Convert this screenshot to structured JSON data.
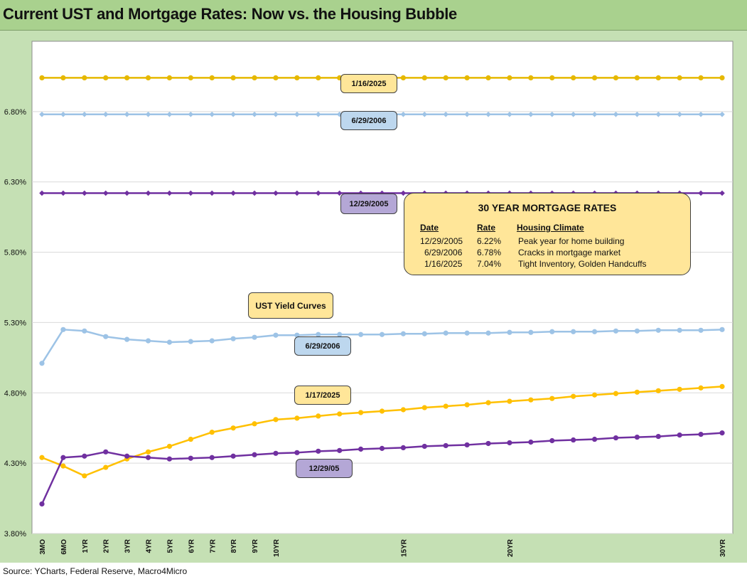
{
  "title": "Current UST and Mortgage Rates: Now vs. the Housing Bubble",
  "source": "Source: YCharts, Federal Reserve, Macro4Micro",
  "chart_data": {
    "type": "line",
    "y_ticks": [
      "3.80%",
      "4.30%",
      "4.80%",
      "5.30%",
      "5.80%",
      "6.30%",
      "6.80%"
    ],
    "ylim": [
      3.8,
      7.3
    ],
    "x_labels": [
      "3MO",
      "6MO",
      "1YR",
      "2YR",
      "3YR",
      "4YR",
      "5YR",
      "6YR",
      "7YR",
      "8YR",
      "9YR",
      "10YR",
      "",
      "",
      "",
      "",
      "",
      "15YR",
      "",
      "",
      "",
      "",
      "20YR",
      "",
      "",
      "",
      "",
      "",
      "",
      "",
      "",
      "",
      "30YR"
    ],
    "grid": true,
    "series": [
      {
        "name": "1/16/2025",
        "color": "#e6b800",
        "marker": "circle",
        "values": [
          7.04,
          7.04,
          7.04,
          7.04,
          7.04,
          7.04,
          7.04,
          7.04,
          7.04,
          7.04,
          7.04,
          7.04,
          7.04,
          7.04,
          7.04,
          7.04,
          7.04,
          7.04,
          7.04,
          7.04,
          7.04,
          7.04,
          7.04,
          7.04,
          7.04,
          7.04,
          7.04,
          7.04,
          7.04,
          7.04,
          7.04,
          7.04,
          7.04
        ]
      },
      {
        "name": "6/29/2006",
        "color": "#9dc3e6",
        "marker": "diamond",
        "values": [
          6.78,
          6.78,
          6.78,
          6.78,
          6.78,
          6.78,
          6.78,
          6.78,
          6.78,
          6.78,
          6.78,
          6.78,
          6.78,
          6.78,
          6.78,
          6.78,
          6.78,
          6.78,
          6.78,
          6.78,
          6.78,
          6.78,
          6.78,
          6.78,
          6.78,
          6.78,
          6.78,
          6.78,
          6.78,
          6.78,
          6.78,
          6.78,
          6.78
        ]
      },
      {
        "name": "12/29/2005",
        "color": "#7030a0",
        "marker": "diamond",
        "values": [
          6.22,
          6.22,
          6.22,
          6.22,
          6.22,
          6.22,
          6.22,
          6.22,
          6.22,
          6.22,
          6.22,
          6.22,
          6.22,
          6.22,
          6.22,
          6.22,
          6.22,
          6.22,
          6.22,
          6.22,
          6.22,
          6.22,
          6.22,
          6.22,
          6.22,
          6.22,
          6.22,
          6.22,
          6.22,
          6.22,
          6.22,
          6.22,
          6.22
        ]
      },
      {
        "name": "6/29/2006",
        "color": "#9dc3e6",
        "marker": "circle",
        "values": [
          5.01,
          5.25,
          5.24,
          5.2,
          5.18,
          5.17,
          5.16,
          5.165,
          5.17,
          5.185,
          5.195,
          5.21,
          5.21,
          5.215,
          5.215,
          5.215,
          5.215,
          5.22,
          5.22,
          5.225,
          5.225,
          5.225,
          5.23,
          5.23,
          5.235,
          5.235,
          5.235,
          5.24,
          5.24,
          5.245,
          5.245,
          5.245,
          5.25
        ]
      },
      {
        "name": "1/17/2025",
        "color": "#ffc000",
        "marker": "circle",
        "values": [
          4.34,
          4.28,
          4.21,
          4.27,
          4.33,
          4.38,
          4.42,
          4.47,
          4.52,
          4.55,
          4.58,
          4.61,
          4.62,
          4.635,
          4.65,
          4.66,
          4.67,
          4.68,
          4.695,
          4.705,
          4.715,
          4.73,
          4.74,
          4.75,
          4.76,
          4.775,
          4.785,
          4.795,
          4.805,
          4.815,
          4.825,
          4.835,
          4.845
        ]
      },
      {
        "name": "12/29/05",
        "color": "#7030a0",
        "marker": "circle",
        "values": [
          4.01,
          4.34,
          4.35,
          4.38,
          4.35,
          4.34,
          4.33,
          4.335,
          4.34,
          4.35,
          4.36,
          4.37,
          4.375,
          4.385,
          4.39,
          4.4,
          4.405,
          4.41,
          4.42,
          4.425,
          4.43,
          4.44,
          4.445,
          4.45,
          4.46,
          4.465,
          4.47,
          4.48,
          4.485,
          4.49,
          4.5,
          4.505,
          4.515
        ]
      }
    ]
  },
  "labels": {
    "l_2025_mtg": "1/16/2025",
    "l_2006_mtg": "6/29/2006",
    "l_2005_mtg": "12/29/2005",
    "l_ust": "UST  Yield Curves",
    "l_2006_ust": "6/29/2006",
    "l_2025_ust": "1/17/2025",
    "l_2005_ust": "12/29/05"
  },
  "mortgage_table": {
    "title": "30 YEAR MORTGAGE RATES",
    "headers": [
      "Date",
      "Rate",
      "Housing Climate"
    ],
    "rows": [
      [
        "12/29/2005",
        "6.22%",
        "Peak year for home building"
      ],
      [
        "6/29/2006",
        "6.78%",
        "Cracks in mortgage market"
      ],
      [
        "1/16/2025",
        "7.04%",
        "Tight Inventory, Golden Handcuffs"
      ]
    ]
  }
}
